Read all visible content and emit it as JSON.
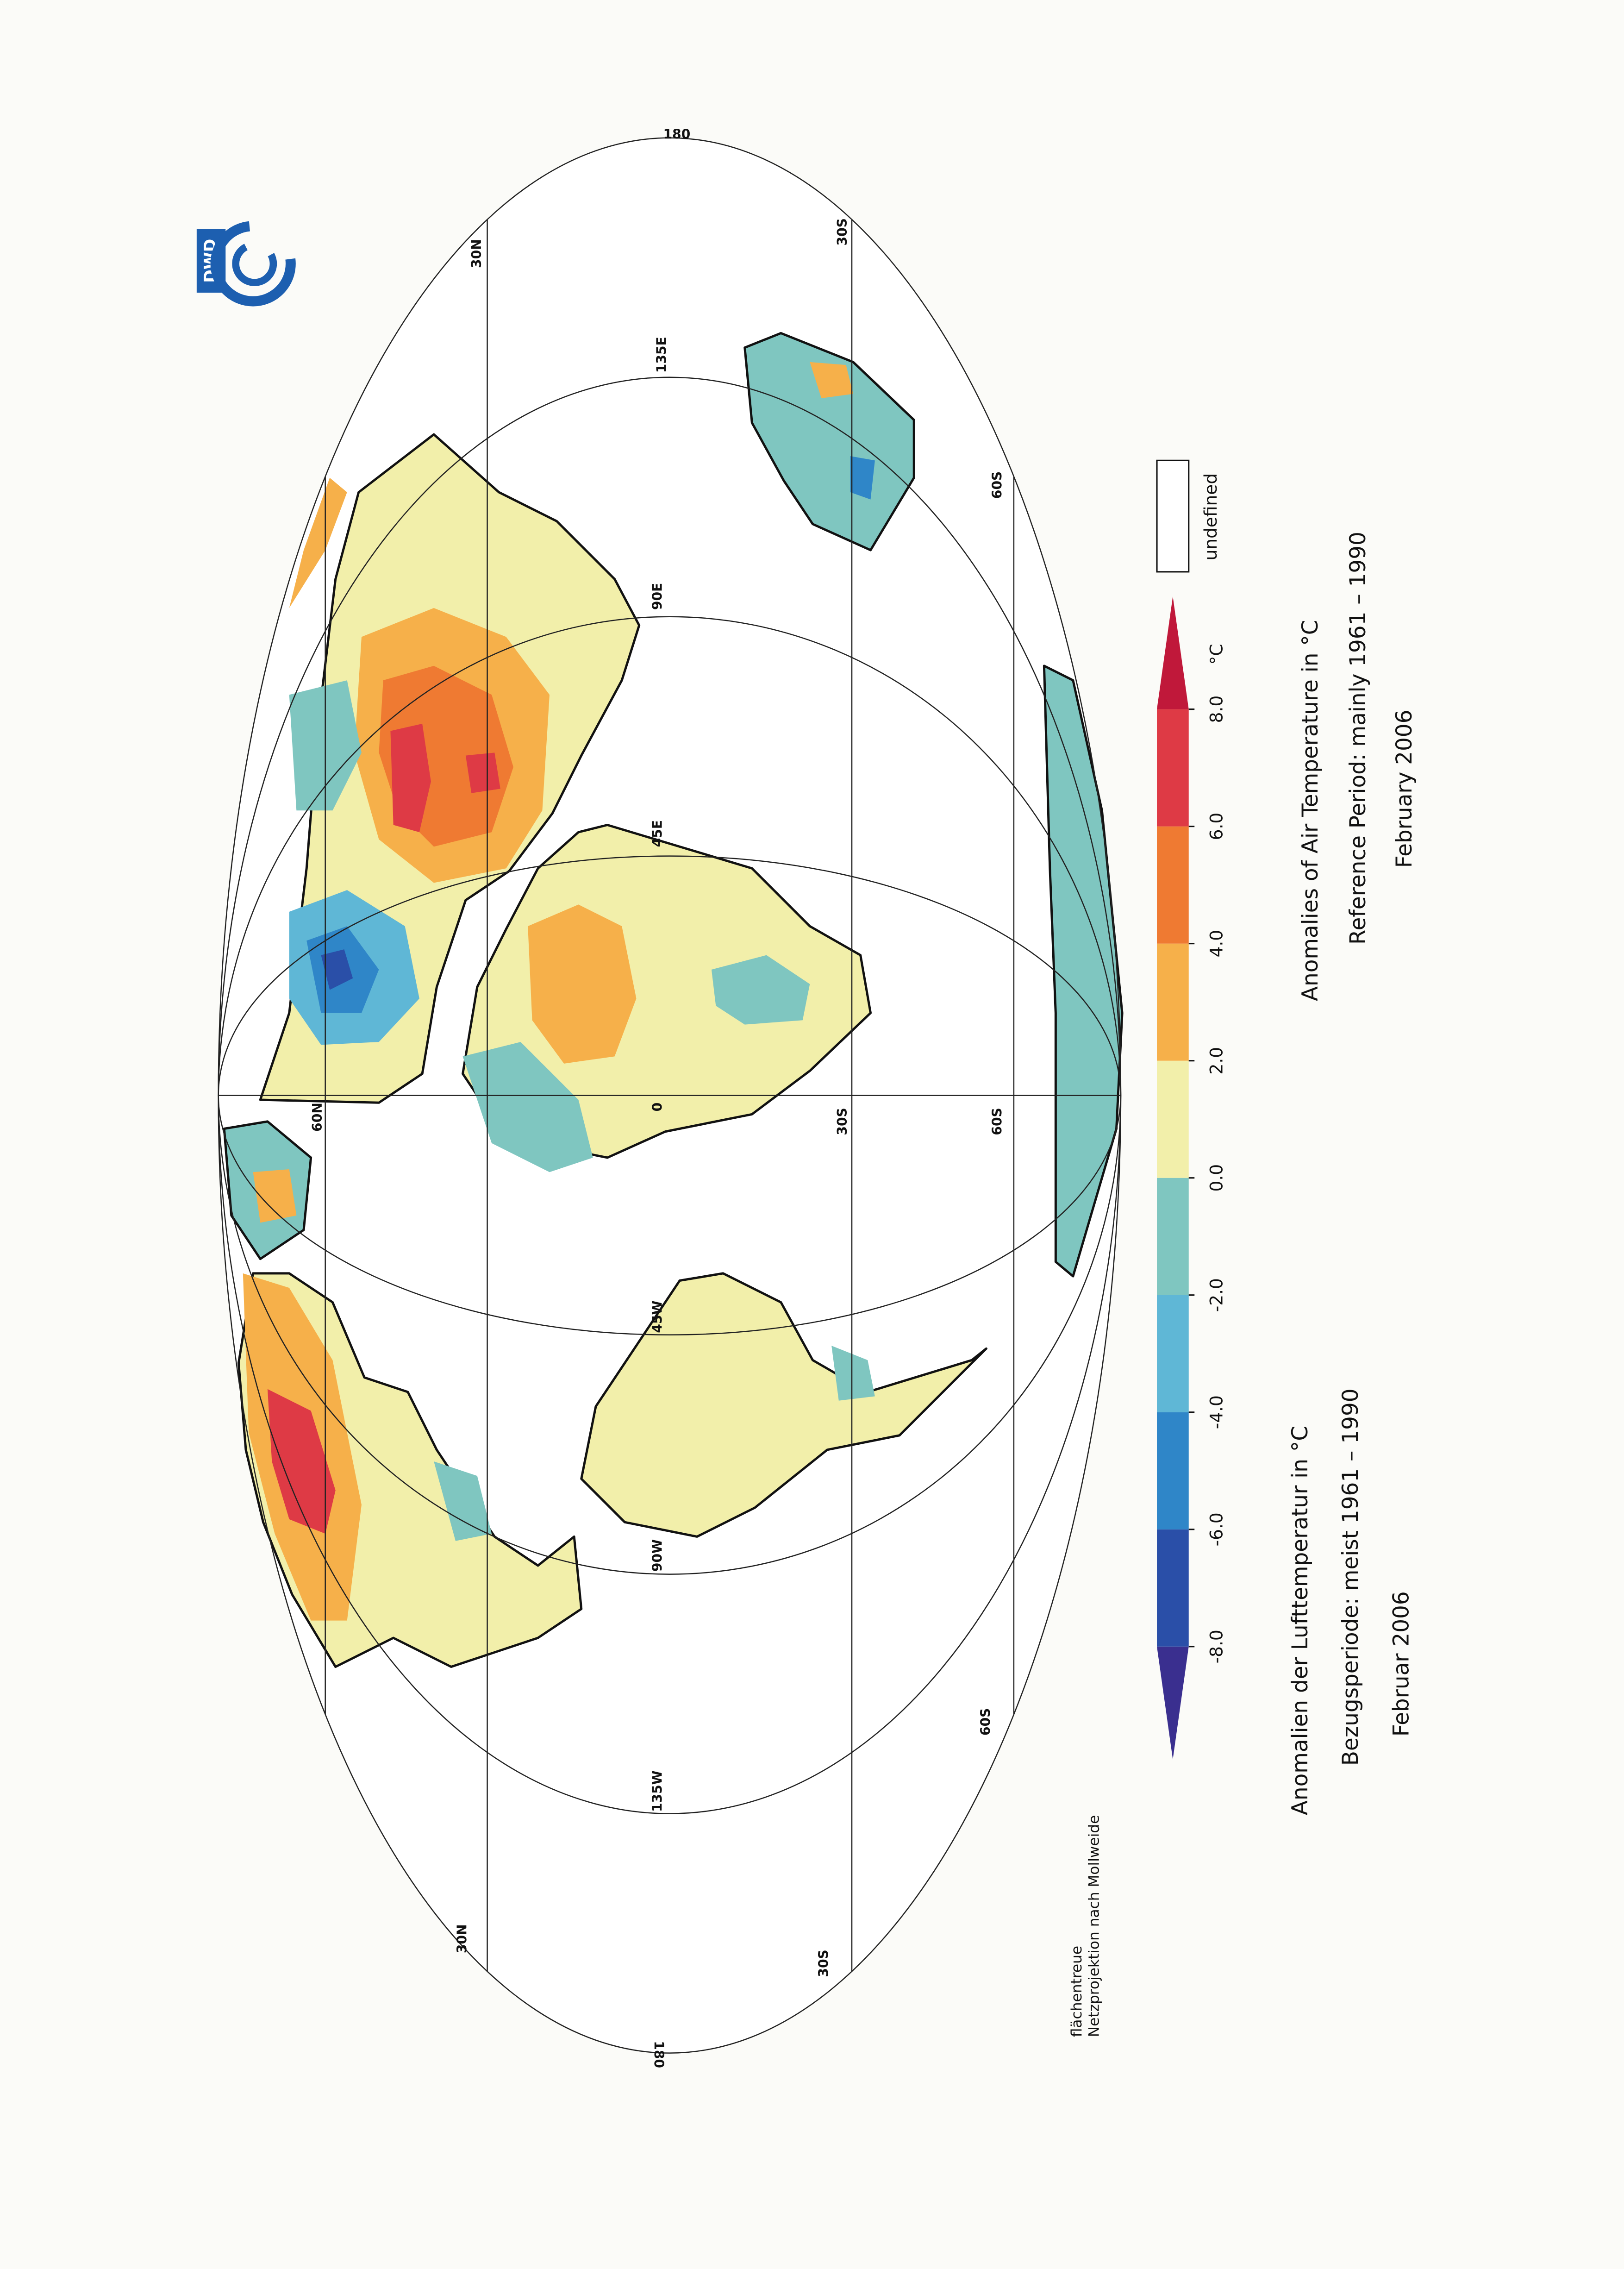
{
  "logo": {
    "text": "DWD"
  },
  "title_en": [
    "Anomalies of Air Temperature in °C",
    "Reference Period: mainly 1961 – 1990",
    "February 2006"
  ],
  "title_de": [
    "Anomalien der Lufttemperatur in °C",
    "Bezugsperiode: meist 1961 – 1990",
    "Februar 2006"
  ],
  "projection_note": [
    "flächentreue",
    "Netzprojektion nach Mollweide"
  ],
  "legend": {
    "labels": [
      "-8.0",
      "-6.0",
      "-4.0",
      "-2.0",
      "0.0",
      "2.0",
      "4.0",
      "6.0",
      "8.0"
    ],
    "unit": "°C",
    "undefined_label": "undefined",
    "colors": [
      "#3a2f8f",
      "#2a4fa8",
      "#2f86c8",
      "#5fb7d6",
      "#7fc6c0",
      "#f2efaa",
      "#f6b04a",
      "#ef7a32",
      "#de3a45",
      "#c0183a"
    ]
  },
  "graticule_labels": [
    "180",
    "30N",
    "30S",
    "135E",
    "60S",
    "90E",
    "45E",
    "0",
    "60N",
    "30S",
    "60S",
    "45W",
    "90W",
    "135W",
    "60S",
    "30N",
    "30S",
    "180"
  ]
}
